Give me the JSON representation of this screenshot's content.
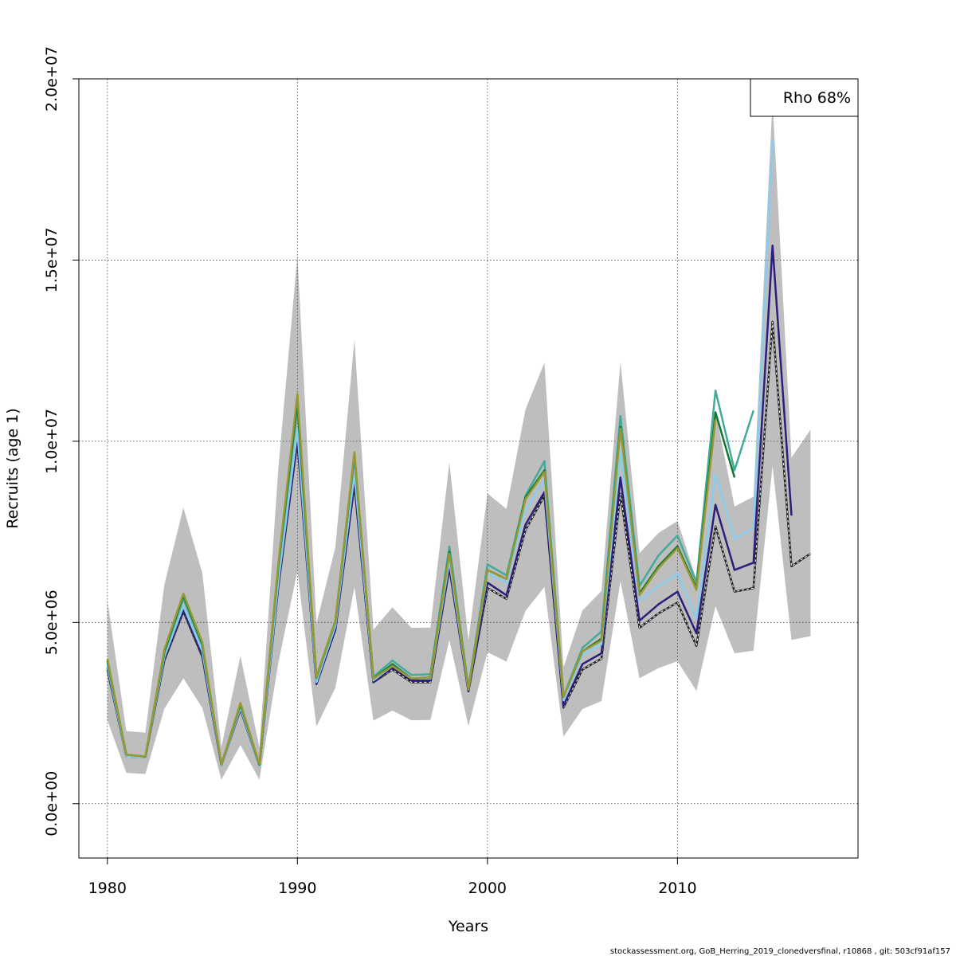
{
  "chart_data": {
    "type": "line",
    "title": "",
    "xlabel": "Years",
    "ylabel": "Recruits (age 1)",
    "xlim": [
      1978.5,
      2019.5
    ],
    "ylim": [
      -1500000,
      20000000
    ],
    "x_ticks": [
      1980,
      1990,
      2000,
      2010
    ],
    "x_tick_labels": [
      "1980",
      "1990",
      "2000",
      "2010"
    ],
    "y_ticks": [
      0,
      5000000,
      10000000,
      15000000,
      20000000
    ],
    "y_tick_labels": [
      "0.0e+00",
      "5.0e+06",
      "1.0e+07",
      "1.5e+07",
      "2.0e+07"
    ],
    "grid": true,
    "legend": {
      "position": "top-right",
      "entries": [
        "Rho 68%"
      ]
    },
    "footer": "stockassessment.org, GoB_Herring_2019_clonedversfinal, r10868 , git: 503cf91af157",
    "confidence_band": {
      "x": [
        1980,
        1981,
        1982,
        1983,
        1984,
        1985,
        1986,
        1987,
        1988,
        1989,
        1990,
        1991,
        1992,
        1993,
        1994,
        1995,
        1996,
        1997,
        1998,
        1999,
        2000,
        2001,
        2002,
        2003,
        2004,
        2005,
        2006,
        2007,
        2008,
        2009,
        2010,
        2011,
        2012,
        2013,
        2014,
        2015,
        2016,
        2017
      ],
      "lower": [
        2300000,
        850000,
        820000,
        2620000,
        3460000,
        2640000,
        660000,
        1620000,
        660000,
        3900000,
        6420000,
        2130000,
        3200000,
        5980000,
        2290000,
        2570000,
        2300000,
        2310000,
        4520000,
        2140000,
        4180000,
        3920000,
        5320000,
        5980000,
        1850000,
        2610000,
        2830000,
        6140000,
        3460000,
        3740000,
        3930000,
        3110000,
        5450000,
        4150000,
        4220000,
        9320000,
        4520000,
        4620000
      ],
      "upper": [
        5610000,
        2000000,
        1960000,
        6040000,
        8170000,
        6360000,
        1560000,
        4080000,
        1550000,
        9290000,
        15120000,
        4970000,
        7080000,
        12800000,
        4800000,
        5420000,
        4850000,
        4860000,
        9420000,
        4510000,
        8560000,
        8130000,
        10880000,
        12170000,
        3760000,
        5330000,
        5870000,
        12190000,
        6910000,
        7470000,
        7800000,
        6190000,
        10830000,
        8200000,
        8470000,
        19410000,
        9550000,
        10320000
      ]
    },
    "series": [
      {
        "color": "#222222",
        "style": "dashed",
        "x": [
          1980,
          1981,
          1982,
          1983,
          1984,
          1985,
          1986,
          1987,
          1988,
          1989,
          1990,
          1991,
          1992,
          1993,
          1994,
          1995,
          1996,
          1997,
          1998,
          1999,
          2000,
          2001,
          2002,
          2003,
          2004,
          2005,
          2006,
          2007,
          2008,
          2009,
          2010,
          2011,
          2012,
          2013,
          2014,
          2015,
          2016,
          2017
        ],
        "values": [
          3700000,
          1300000,
          1280000,
          3950000,
          5300000,
          4050000,
          1050000,
          2600000,
          1050000,
          6000000,
          10000000,
          3300000,
          4800000,
          8800000,
          3350000,
          3700000,
          3350000,
          3350000,
          6500000,
          3100000,
          5950000,
          5650000,
          7550000,
          8500000,
          2650000,
          3700000,
          4000000,
          8550000,
          4850000,
          5250000,
          5550000,
          4350000,
          7650000,
          5850000,
          5950000,
          13300000,
          6550000,
          6900000
        ]
      },
      {
        "color": "#2e1e7c",
        "style": "solid",
        "x": [
          1980,
          1981,
          1982,
          1983,
          1984,
          1985,
          1986,
          1987,
          1988,
          1989,
          1990,
          1991,
          1992,
          1993,
          1994,
          1995,
          1996,
          1997,
          1998,
          1999,
          2000,
          2001,
          2002,
          2003,
          2004,
          2005,
          2006,
          2007,
          2008,
          2009,
          2010,
          2011,
          2012,
          2013,
          2014,
          2015,
          2016
        ],
        "values": [
          3750000,
          1300000,
          1280000,
          4000000,
          5350000,
          4100000,
          1050000,
          2620000,
          1050000,
          6050000,
          10050000,
          3300000,
          4800000,
          8850000,
          3350000,
          3750000,
          3400000,
          3400000,
          6550000,
          3100000,
          6100000,
          5750000,
          7700000,
          8600000,
          2700000,
          3850000,
          4150000,
          9000000,
          5050000,
          5500000,
          5850000,
          4700000,
          8250000,
          6450000,
          6650000,
          15400000,
          7950000
        ]
      },
      {
        "color": "#88ccee",
        "style": "solid",
        "x": [
          1980,
          1981,
          1982,
          1983,
          1984,
          1985,
          1986,
          1987,
          1988,
          1989,
          1990,
          1991,
          1992,
          1993,
          1994,
          1995,
          1996,
          1997,
          1998,
          1999,
          2000,
          2001,
          2002,
          2003,
          2004,
          2005,
          2006,
          2007,
          2008,
          2009,
          2010,
          2011,
          2012,
          2013,
          2014,
          2015
        ],
        "values": [
          3800000,
          1300000,
          1280000,
          4050000,
          5450000,
          4200000,
          1050000,
          2650000,
          1050000,
          6150000,
          10300000,
          3350000,
          4900000,
          9100000,
          3400000,
          3800000,
          3450000,
          3450000,
          6700000,
          3150000,
          6350000,
          6100000,
          8100000,
          8900000,
          2850000,
          4100000,
          4400000,
          9700000,
          5600000,
          6000000,
          6350000,
          5100000,
          9100000,
          7300000,
          7600000,
          18300000
        ]
      },
      {
        "color": "#44aa99",
        "style": "solid",
        "x": [
          1980,
          1981,
          1982,
          1983,
          1984,
          1985,
          1986,
          1987,
          1988,
          1989,
          1990,
          1991,
          1992,
          1993,
          1994,
          1995,
          1996,
          1997,
          1998,
          1999,
          2000,
          2001,
          2002,
          2003,
          2004,
          2005,
          2006,
          2007,
          2008,
          2009,
          2010,
          2011,
          2012,
          2013,
          2014
        ],
        "values": [
          3900000,
          1350000,
          1300000,
          4150000,
          5650000,
          4350000,
          1080000,
          2720000,
          1080000,
          6500000,
          10900000,
          3450000,
          5000000,
          9550000,
          3500000,
          3950000,
          3550000,
          3570000,
          7100000,
          3200000,
          6600000,
          6300000,
          8500000,
          9450000,
          2950000,
          4300000,
          4750000,
          10700000,
          6000000,
          6850000,
          7400000,
          6100000,
          11400000,
          9200000,
          10850000
        ]
      },
      {
        "color": "#117733",
        "style": "solid",
        "x": [
          1980,
          1981,
          1982,
          1983,
          1984,
          1985,
          1986,
          1987,
          1988,
          1989,
          1990,
          1991,
          1992,
          1993,
          1994,
          1995,
          1996,
          1997,
          1998,
          1999,
          2000,
          2001,
          2002,
          2003,
          2004,
          2005,
          2006,
          2007,
          2008,
          2009,
          2010,
          2011,
          2012,
          2013
        ],
        "values": [
          3950000,
          1350000,
          1300000,
          4200000,
          5750000,
          4400000,
          1080000,
          2750000,
          1080000,
          6600000,
          11100000,
          3500000,
          5050000,
          9650000,
          3450000,
          3850000,
          3450000,
          3480000,
          6950000,
          3150000,
          6450000,
          6200000,
          8450000,
          9200000,
          2950000,
          4200000,
          4550000,
          10400000,
          5800000,
          6550000,
          7100000,
          5950000,
          10800000,
          9000000
        ]
      },
      {
        "color": "#999933",
        "style": "solid",
        "x": [
          1980,
          1981,
          1982,
          1983,
          1984,
          1985,
          1986,
          1987,
          1988,
          1989,
          1990,
          1991,
          1992,
          1993,
          1994,
          1995,
          1996,
          1997,
          1998,
          1999,
          2000,
          2001,
          2002,
          2003,
          2004,
          2005,
          2006,
          2007,
          2008,
          2009,
          2010,
          2011,
          2012
        ],
        "values": [
          4000000,
          1350000,
          1300000,
          4250000,
          5800000,
          4450000,
          1080000,
          2780000,
          1100000,
          6650000,
          11300000,
          3500000,
          5050000,
          9700000,
          3450000,
          3800000,
          3450000,
          3470000,
          6900000,
          3150000,
          6450000,
          6200000,
          8400000,
          9150000,
          2950000,
          4200000,
          4500000,
          10350000,
          5750000,
          6500000,
          7050000,
          5900000,
          10600000
        ]
      }
    ]
  }
}
